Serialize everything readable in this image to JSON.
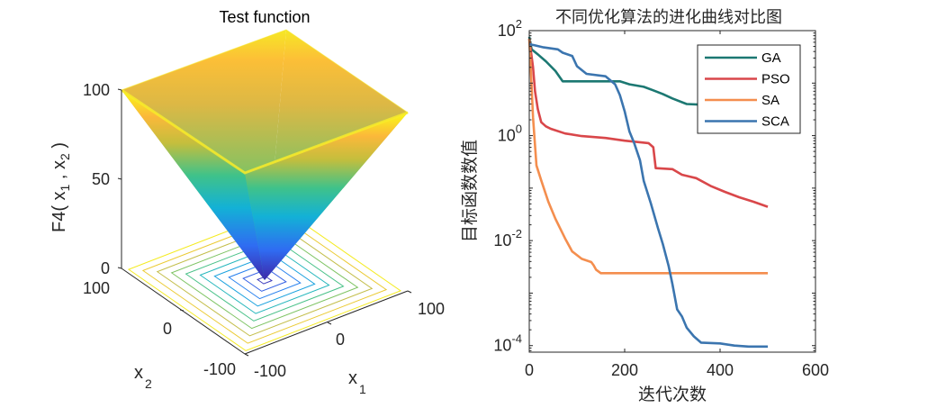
{
  "chart_data": [
    {
      "type": "surface3d",
      "title": "Test function",
      "xlabel": "x",
      "xlabel_sub": "1",
      "ylabel": "x",
      "ylabel_sub": "2",
      "zlabel": "F4( x_1 , x_2 )",
      "zlabel_parts": [
        "F4( x",
        "1",
        " , x",
        "2",
        " )"
      ],
      "function": "F4 = max(|x1|, |x2|)",
      "x_range": [
        -100,
        100
      ],
      "y_range": [
        -100,
        100
      ],
      "z_range": [
        0,
        100
      ],
      "x_ticks": [
        "-100",
        "0",
        "100"
      ],
      "y_ticks": [
        "-100",
        "0",
        "100"
      ],
      "z_ticks": [
        "0",
        "50",
        "100"
      ],
      "colormap": "parula",
      "contour_levels": [
        5,
        15,
        25,
        35,
        45,
        55,
        65,
        75,
        85,
        95
      ],
      "contour_on_floor": true
    },
    {
      "type": "line",
      "title": "不同优化算法的进化曲线对比图",
      "xlabel": "迭代次数",
      "ylabel": "目标函数数值",
      "xlim": [
        0,
        600
      ],
      "ylim": [
        7.5e-05,
        100
      ],
      "yscale": "log",
      "x_ticks": [
        0,
        200,
        400,
        600
      ],
      "y_ticks": [
        {
          "value": 100,
          "base": "10",
          "exp": "2"
        },
        {
          "value": 1,
          "base": "10",
          "exp": "0"
        },
        {
          "value": 0.01,
          "base": "10",
          "exp": "-2"
        },
        {
          "value": 0.0001,
          "base": "10",
          "exp": "-4"
        }
      ],
      "legend_position": "top-right",
      "grid": false,
      "series": [
        {
          "name": "GA",
          "color": "#1c7872",
          "x": [
            0,
            5,
            20,
            35,
            55,
            70,
            190,
            210,
            240,
            260,
            280,
            300,
            330,
            355
          ],
          "y": [
            76,
            44,
            34,
            26,
            17,
            10.8,
            10.8,
            9.5,
            8.5,
            7.3,
            6.2,
            5.1,
            4.0,
            3.9
          ]
        },
        {
          "name": "PSO",
          "color": "#d9474a",
          "x": [
            0,
            8,
            12,
            18,
            25,
            35,
            45,
            75,
            110,
            160,
            200,
            250,
            260,
            265,
            300,
            320,
            350,
            380,
            410,
            440,
            470,
            500
          ],
          "y": [
            70,
            20,
            7.0,
            3.2,
            1.8,
            1.5,
            1.35,
            1.1,
            0.98,
            0.9,
            0.8,
            0.72,
            0.6,
            0.24,
            0.23,
            0.18,
            0.155,
            0.11,
            0.085,
            0.067,
            0.055,
            0.044
          ]
        },
        {
          "name": "SA",
          "color": "#f48e4e",
          "x": [
            0,
            3,
            8,
            15,
            25,
            40,
            55,
            75,
            90,
            110,
            130,
            135,
            140,
            150,
            500
          ],
          "y": [
            70,
            20,
            2.2,
            0.27,
            0.14,
            0.055,
            0.026,
            0.011,
            0.0062,
            0.0045,
            0.0039,
            0.0034,
            0.0028,
            0.0024,
            0.0024
          ]
        },
        {
          "name": "SCA",
          "color": "#3b75af",
          "x": [
            0,
            10,
            30,
            60,
            70,
            90,
            100,
            120,
            160,
            180,
            190,
            200,
            210,
            220,
            232,
            240,
            255,
            270,
            280,
            292,
            300,
            310,
            320,
            330,
            345,
            360,
            400,
            430,
            460,
            500
          ],
          "y": [
            55,
            53,
            48,
            44,
            38,
            33,
            21,
            15,
            13.5,
            9.5,
            5.9,
            2.9,
            1.2,
            0.72,
            0.34,
            0.137,
            0.051,
            0.017,
            0.0086,
            0.0033,
            0.0015,
            0.00049,
            0.00036,
            0.00022,
            0.00015,
            0.000114,
            0.00011,
            0.0001,
            9.6e-05,
            9.6e-05
          ]
        }
      ]
    }
  ]
}
